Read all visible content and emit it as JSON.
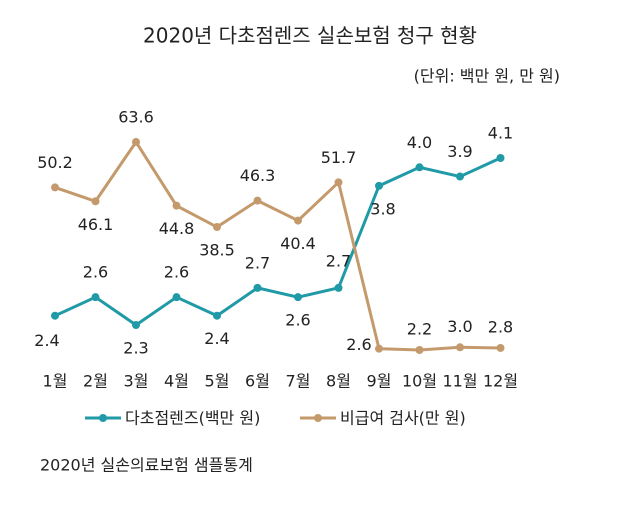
{
  "chart_data": {
    "type": "line",
    "title": "2020년 다초점렌즈 실손보험 청구 현황",
    "subtitle": "(단위: 백만 원, 만 원)",
    "note": "2020년 실손의료보험 샘플통계",
    "categories": [
      "1월",
      "2월",
      "3월",
      "4월",
      "5월",
      "6월",
      "7월",
      "8월",
      "9월",
      "10월",
      "11월",
      "12월"
    ],
    "series": [
      {
        "name": "다초점렌즈(백만 원)",
        "color": "#1f9aa6",
        "values": [
          2.4,
          2.6,
          2.3,
          2.6,
          2.4,
          2.7,
          2.6,
          2.7,
          3.8,
          4.0,
          3.9,
          4.1
        ],
        "value_labels": [
          "2.4",
          "2.6",
          "2.3",
          "2.6",
          "2.4",
          "2.7",
          "2.6",
          "2.7",
          "3.8",
          "4.0",
          "3.9",
          "4.1"
        ]
      },
      {
        "name": "비급여 검사(만 원)",
        "color": "#c49a6c",
        "values": [
          50.2,
          46.1,
          63.6,
          44.8,
          38.5,
          46.3,
          40.4,
          51.7,
          2.6,
          2.2,
          3.0,
          2.8
        ],
        "value_labels": [
          "50.2",
          "46.1",
          "63.6",
          "44.8",
          "38.5",
          "46.3",
          "40.4",
          "51.7",
          "2.6",
          "2.2",
          "3.0",
          "2.8"
        ]
      }
    ]
  }
}
